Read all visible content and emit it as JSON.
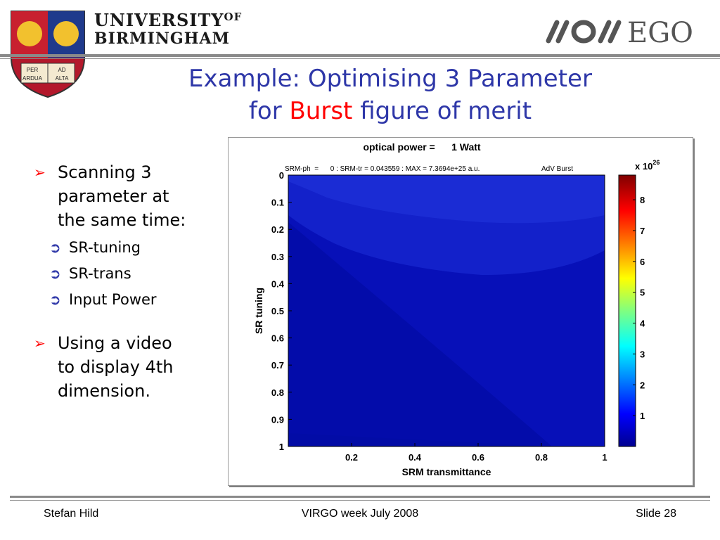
{
  "header": {
    "uni_line1": "UNIVERSITY",
    "uni_of": "OF",
    "uni_line2": "BIRMINGHAM",
    "crest_motto": [
      "PER",
      "AD",
      "ARDUA",
      "ALTA"
    ],
    "ego_text": "EGO"
  },
  "title": {
    "line1": "Example: Optimising 3 Parameter",
    "line2_pre": "for ",
    "line2_highlight": "Burst",
    "line2_post": " figure of merit"
  },
  "bullets": [
    {
      "text_lines": [
        "Scanning 3",
        "parameter at",
        "the same time:"
      ],
      "sub": [
        "SR-tuning",
        "SR-trans",
        "Input Power"
      ]
    },
    {
      "text_lines": [
        "Using a video",
        "to display 4th",
        "dimension."
      ],
      "sub": []
    }
  ],
  "chart_data": {
    "type": "heatmap",
    "title": "optical power =      1 Watt",
    "subtitle_left": "SRM-ph  =      0 : SRM-tr = 0.043559 : MAX = 7.3694e+25 a.u.",
    "subtitle_right": "AdV Burst",
    "xlabel": "SRM transmittance",
    "ylabel": "SR tuning",
    "x_ticks": [
      "0.2",
      "0.4",
      "0.6",
      "0.8",
      "1"
    ],
    "y_ticks": [
      "0",
      "0.1",
      "0.2",
      "0.3",
      "0.4",
      "0.5",
      "0.6",
      "0.7",
      "0.8",
      "0.9",
      "1"
    ],
    "xlim": [
      0,
      1
    ],
    "ylim": [
      0,
      1
    ],
    "colorbar": {
      "ticks": [
        "1",
        "2",
        "3",
        "4",
        "5",
        "6",
        "7",
        "8"
      ],
      "exponent_label": "x 10",
      "exponent": "26",
      "range": [
        0,
        8.8
      ]
    },
    "colors": {
      "low": "#0000a8",
      "mid": "#1f2fd8"
    }
  },
  "footer": {
    "author": "Stefan Hild",
    "event": "VIRGO week July 2008",
    "slide": "Slide 28"
  }
}
